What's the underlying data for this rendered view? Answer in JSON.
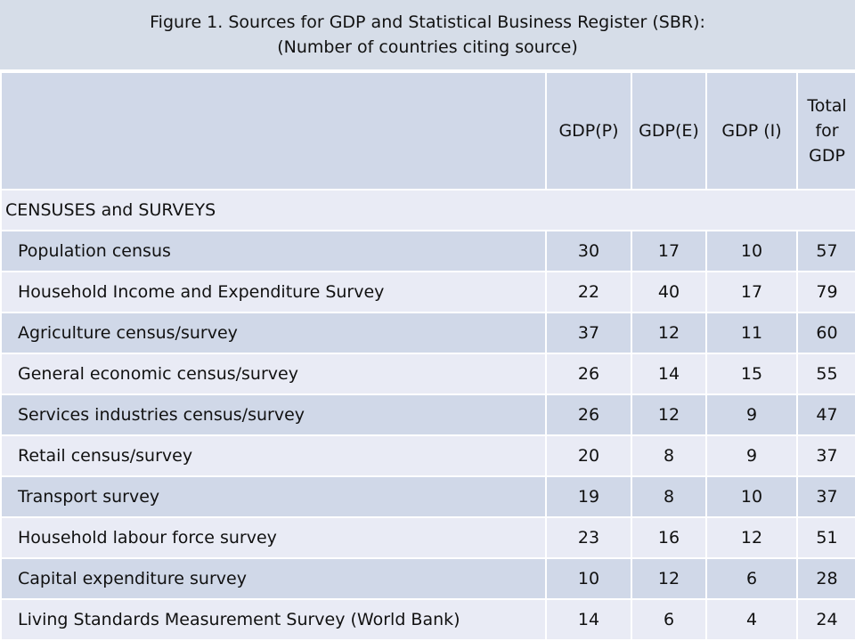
{
  "title": {
    "line1": "Figure 1. Sources for GDP and Statistical Business Register (SBR):",
    "line2": "(Number of countries citing source)"
  },
  "columns": [
    "GDP(P)",
    "GDP(E)",
    "GDP (I)",
    "Total for GDP"
  ],
  "total_header_lines": [
    "Total",
    "for",
    "GDP"
  ],
  "section": "CENSUSES and SURVEYS",
  "rows": [
    {
      "label": "Population census",
      "values": [
        "30",
        "17",
        "10",
        "57"
      ]
    },
    {
      "label": "Household Income and Expenditure Survey",
      "values": [
        "22",
        "40",
        "17",
        "79"
      ]
    },
    {
      "label": "Agriculture census/survey",
      "values": [
        "37",
        "12",
        "11",
        "60"
      ]
    },
    {
      "label": "General economic census/survey",
      "values": [
        "26",
        "14",
        "15",
        "55"
      ]
    },
    {
      "label": "Services industries census/survey",
      "values": [
        "26",
        "12",
        "9",
        "47"
      ]
    },
    {
      "label": "Retail census/survey",
      "values": [
        "20",
        "8",
        "9",
        "37"
      ]
    },
    {
      "label": "Transport survey",
      "values": [
        "19",
        "8",
        "10",
        "37"
      ]
    },
    {
      "label": "Household labour force survey",
      "values": [
        "23",
        "16",
        "12",
        "51"
      ]
    },
    {
      "label": "Capital expenditure survey",
      "values": [
        "10",
        "12",
        "6",
        "28"
      ]
    },
    {
      "label": "Living Standards Measurement Survey (World Bank)",
      "values": [
        "14",
        "6",
        "4",
        "24"
      ]
    }
  ],
  "colors": {
    "title_band": "#d6dde8",
    "row_light": "#e9ebf5",
    "row_dark": "#d0d8e8",
    "grid": "#ffffff"
  }
}
